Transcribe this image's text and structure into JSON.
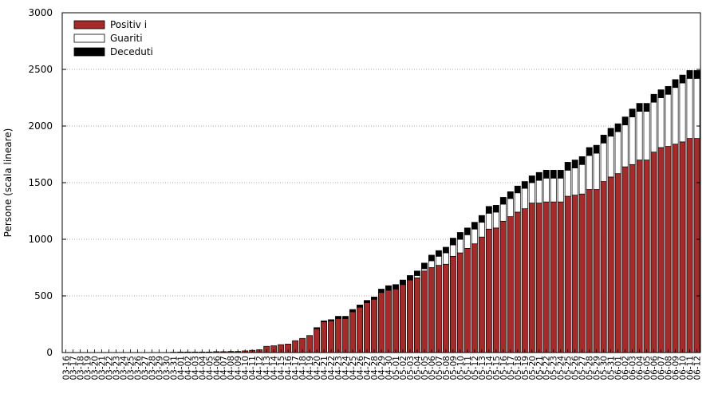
{
  "chart_data": {
    "type": "bar",
    "stacked": true,
    "ylabel": "Persone (scala lineare)",
    "ylim": [
      0,
      3000
    ],
    "yticks": [
      0,
      500,
      1000,
      1500,
      2000,
      2500,
      3000
    ],
    "grid": "horizontal-dotted",
    "legend_position": "top-left",
    "categories": [
      "03-16",
      "03-17",
      "03-18",
      "03-19",
      "03-20",
      "03-21",
      "03-22",
      "03-23",
      "03-24",
      "03-25",
      "03-26",
      "03-27",
      "03-28",
      "03-29",
      "03-30",
      "03-31",
      "04-01",
      "04-02",
      "04-03",
      "04-04",
      "04-05",
      "04-06",
      "04-07",
      "04-08",
      "04-09",
      "04-10",
      "04-11",
      "04-12",
      "04-13",
      "04-14",
      "04-15",
      "04-16",
      "04-17",
      "04-18",
      "04-19",
      "04-20",
      "04-21",
      "04-22",
      "04-23",
      "04-24",
      "04-25",
      "04-26",
      "04-27",
      "04-28",
      "04-29",
      "04-30",
      "05-01",
      "05-02",
      "05-03",
      "05-04",
      "05-05",
      "05-06",
      "05-07",
      "05-08",
      "05-09",
      "05-10",
      "05-11",
      "05-12",
      "05-13",
      "05-14",
      "05-15",
      "05-16",
      "05-17",
      "05-18",
      "05-19",
      "05-20",
      "05-21",
      "05-22",
      "05-23",
      "05-24",
      "05-25",
      "05-26",
      "05-27",
      "05-28",
      "05-29",
      "05-30",
      "05-31",
      "06-01",
      "06-02",
      "06-03",
      "06-04",
      "06-05",
      "06-06",
      "06-07",
      "06-08",
      "06-09",
      "06-10",
      "06-11",
      "06-12"
    ],
    "series": [
      {
        "name": "Positiv i",
        "color": "#a52a2a",
        "values": [
          0,
          0,
          0,
          0,
          0,
          0,
          0,
          0,
          0,
          0,
          0,
          0,
          0,
          0,
          0,
          3,
          5,
          5,
          5,
          5,
          5,
          8,
          8,
          10,
          10,
          15,
          20,
          25,
          55,
          60,
          70,
          75,
          105,
          125,
          150,
          210,
          270,
          280,
          300,
          300,
          360,
          400,
          440,
          470,
          530,
          550,
          560,
          600,
          640,
          660,
          720,
          750,
          770,
          780,
          850,
          880,
          920,
          960,
          1020,
          1090,
          1100,
          1160,
          1200,
          1240,
          1270,
          1320,
          1320,
          1330,
          1330,
          1330,
          1380,
          1390,
          1400,
          1440,
          1440,
          1510,
          1550,
          1580,
          1640,
          1660,
          1700,
          1700,
          1770,
          1810,
          1820,
          1840,
          1860,
          1890,
          1890
        ]
      },
      {
        "name": "Guariti",
        "color": "#ffffff",
        "values": [
          0,
          0,
          0,
          0,
          0,
          0,
          0,
          0,
          0,
          0,
          0,
          0,
          0,
          0,
          0,
          0,
          0,
          0,
          0,
          0,
          0,
          0,
          0,
          0,
          0,
          0,
          0,
          0,
          0,
          0,
          0,
          0,
          0,
          0,
          0,
          0,
          0,
          0,
          0,
          0,
          0,
          0,
          0,
          0,
          0,
          0,
          0,
          0,
          0,
          20,
          20,
          60,
          80,
          100,
          100,
          120,
          120,
          130,
          130,
          140,
          140,
          150,
          160,
          170,
          180,
          180,
          200,
          210,
          210,
          210,
          230,
          240,
          260,
          300,
          320,
          340,
          360,
          370,
          370,
          420,
          430,
          430,
          440,
          440,
          460,
          500,
          520,
          530,
          530
        ]
      },
      {
        "name": "Deceduti",
        "color": "#000000",
        "values": [
          0,
          0,
          0,
          0,
          0,
          0,
          0,
          0,
          0,
          0,
          0,
          0,
          0,
          0,
          0,
          0,
          0,
          0,
          0,
          0,
          0,
          0,
          0,
          0,
          0,
          0,
          0,
          0,
          0,
          0,
          0,
          0,
          0,
          0,
          0,
          10,
          10,
          10,
          20,
          20,
          20,
          20,
          20,
          20,
          30,
          40,
          40,
          40,
          40,
          40,
          50,
          50,
          50,
          50,
          60,
          60,
          60,
          60,
          60,
          60,
          60,
          60,
          60,
          60,
          60,
          60,
          70,
          70,
          70,
          70,
          70,
          70,
          70,
          70,
          70,
          70,
          70,
          70,
          70,
          70,
          70,
          70,
          70,
          70,
          70,
          70,
          70,
          70,
          70
        ]
      }
    ]
  }
}
